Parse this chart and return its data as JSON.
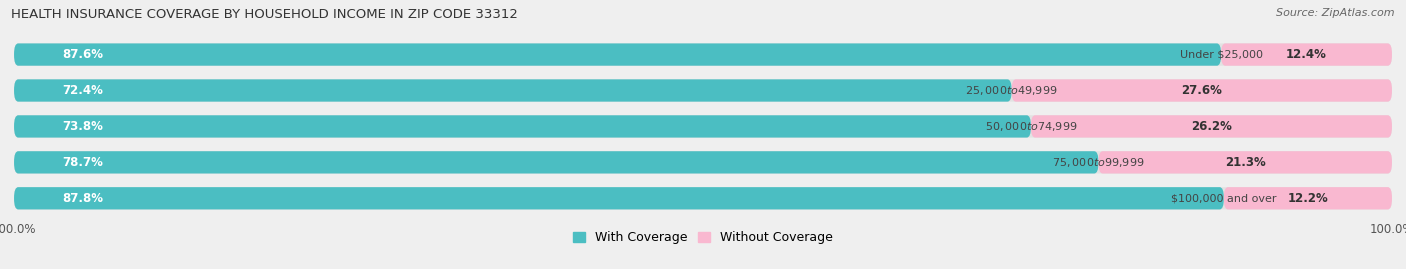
{
  "title": "HEALTH INSURANCE COVERAGE BY HOUSEHOLD INCOME IN ZIP CODE 33312",
  "source": "Source: ZipAtlas.com",
  "categories": [
    "Under $25,000",
    "$25,000 to $49,999",
    "$50,000 to $74,999",
    "$75,000 to $99,999",
    "$100,000 and over"
  ],
  "with_coverage": [
    87.6,
    72.4,
    73.8,
    78.7,
    87.8
  ],
  "without_coverage": [
    12.4,
    27.6,
    26.2,
    21.3,
    12.2
  ],
  "color_with": "#4BBEC2",
  "color_with_light": "#A8DCDE",
  "color_without": "#F06EA0",
  "color_without_light": "#F9B8D0",
  "bg_color": "#EFEFEF",
  "bar_bg": "#E2E2E2",
  "title_fontsize": 9.5,
  "source_fontsize": 8,
  "label_fontsize": 8.5,
  "legend_fontsize": 9
}
